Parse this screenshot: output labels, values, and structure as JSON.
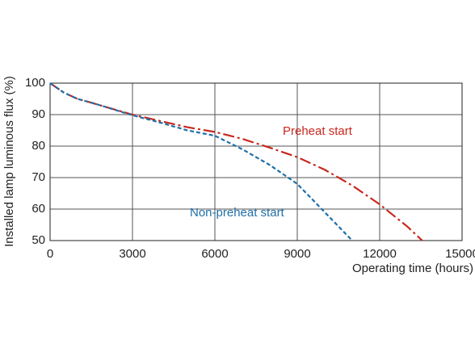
{
  "chart_data": {
    "type": "line",
    "x_label": "Operating time (hours)",
    "y_label": "Installed lamp luminous flux  (%)",
    "x": [
      0,
      500,
      1000,
      1500,
      2000,
      3000,
      4000,
      5000,
      6000,
      7000,
      8000,
      9000,
      10000,
      11000,
      12000,
      13000,
      13550
    ],
    "series": [
      {
        "name": "Preheat start",
        "color": "#c8281e",
        "dash": "dash-dot",
        "values": [
          100,
          97,
          95,
          93.8,
          92.5,
          90,
          88,
          86,
          84.5,
          82.3,
          79.5,
          76.5,
          72.5,
          67.5,
          61.5,
          54.5,
          50
        ]
      },
      {
        "name": "Non-preheat start",
        "color": "#1f6fa8",
        "dash": "dashed",
        "values": [
          100,
          97,
          95,
          93.8,
          92.5,
          89.8,
          87.5,
          85,
          83.3,
          79,
          74,
          68,
          59,
          50,
          null,
          null,
          null
        ]
      }
    ],
    "xlim": [
      0,
      15000
    ],
    "ylim": [
      50,
      100
    ],
    "xticks": [
      0,
      3000,
      6000,
      9000,
      12000,
      15000
    ],
    "yticks": [
      50,
      60,
      70,
      80,
      90,
      100
    ],
    "grid": true
  }
}
